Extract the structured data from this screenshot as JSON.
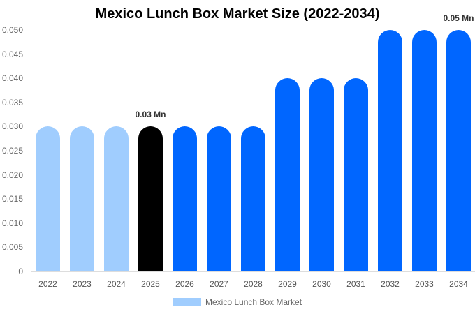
{
  "chart_data": {
    "type": "bar",
    "title": "Mexico Lunch Box Market Size (2022-2034)",
    "xlabel": "",
    "ylabel": "",
    "ylim": [
      0,
      0.05
    ],
    "yticks": [
      "0",
      "0.005",
      "0.010",
      "0.015",
      "0.020",
      "0.025",
      "0.030",
      "0.035",
      "0.040",
      "0.045",
      "0.050"
    ],
    "categories": [
      "2022",
      "2023",
      "2024",
      "2025",
      "2026",
      "2027",
      "2028",
      "2029",
      "2030",
      "2031",
      "2032",
      "2033",
      "2034"
    ],
    "series": [
      {
        "name": "Mexico Lunch Box Market",
        "values": [
          0.03,
          0.03,
          0.03,
          0.03,
          0.03,
          0.03,
          0.03,
          0.04,
          0.04,
          0.04,
          0.05,
          0.05,
          0.05
        ]
      }
    ],
    "bar_colors": [
      "#a0cdfe",
      "#a0cdfe",
      "#a0cdfe",
      "#000000",
      "#0066ff",
      "#0066ff",
      "#0066ff",
      "#0066ff",
      "#0066ff",
      "#0066ff",
      "#0066ff",
      "#0066ff",
      "#0066ff"
    ],
    "annotations": [
      {
        "category": "2025",
        "text": "0.03 Mn"
      },
      {
        "category": "2034",
        "text": "0.05 Mn"
      }
    ],
    "legend": {
      "position": "bottom",
      "entries": [
        {
          "label": "Mexico Lunch Box Market",
          "color": "#a0cdfe"
        }
      ]
    },
    "grid": false
  }
}
